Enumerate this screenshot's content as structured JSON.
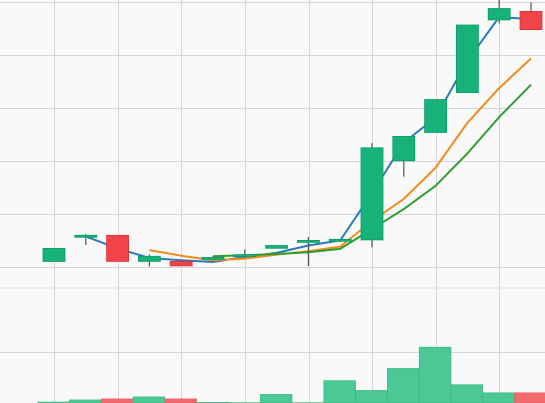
{
  "chart_data": {
    "type": "candlestick",
    "title": "",
    "grid": true,
    "background": "#f9f9f9",
    "colors": {
      "up": "#17b27a",
      "down": "#f0444a",
      "volume_up": "#4cc894",
      "volume_down": "#f06a6e",
      "ma_short": "#2c7bb6",
      "ma_mid": "#f28a1c",
      "ma_long": "#2e9e2e",
      "grid": "#d6d6d6",
      "wick": "#555555"
    },
    "price_ylim": [
      -4.5,
      46
    ],
    "volume_ylim": [
      0,
      56
    ],
    "candles": [
      {
        "open": 0.0,
        "close": 2.3,
        "high": 2.3,
        "low": 0.0
      },
      {
        "open": 4.3,
        "close": 4.6,
        "high": 4.8,
        "low": 2.9
      },
      {
        "open": 4.6,
        "close": 0.0,
        "high": 4.6,
        "low": 0.0
      },
      {
        "open": 0.0,
        "close": 0.9,
        "high": 1.2,
        "low": -0.9
      },
      {
        "open": 0.0,
        "close": -0.8,
        "high": 0.0,
        "low": -0.8
      },
      {
        "open": 0.4,
        "close": 0.7,
        "high": 0.9,
        "low": 0.3
      },
      {
        "open": 0.9,
        "close": 1.2,
        "high": 2.1,
        "low": 0.6
      },
      {
        "open": 2.3,
        "close": 2.8,
        "high": 2.8,
        "low": 2.3
      },
      {
        "open": 3.4,
        "close": 3.7,
        "high": 4.3,
        "low": -0.8
      },
      {
        "open": 3.7,
        "close": 3.9,
        "high": 3.9,
        "low": 3.4
      },
      {
        "open": 3.8,
        "close": 20.0,
        "high": 20.8,
        "low": 2.5
      },
      {
        "open": 17.7,
        "close": 22.0,
        "high": 22.0,
        "low": 14.9
      },
      {
        "open": 22.7,
        "close": 28.5,
        "high": 28.5,
        "low": 22.7
      },
      {
        "open": 29.7,
        "close": 41.6,
        "high": 41.6,
        "low": 29.7
      },
      {
        "open": 42.5,
        "close": 44.5,
        "high": 46.6,
        "low": 41.9
      },
      {
        "open": 44.0,
        "close": 40.8,
        "high": 45.6,
        "low": 40.8
      }
    ],
    "volume": [
      0.5,
      1.5,
      2.0,
      3.0,
      2.0,
      0.3,
      0.2,
      4.2,
      0.2,
      11.0,
      6.2,
      17.0,
      27.4,
      9.0,
      5.0,
      5.0
    ],
    "series": [
      {
        "values": [
          null,
          4.4,
          2.3,
          0.6,
          0.2,
          -0.1,
          0.8,
          1.5,
          2.8,
          3.7,
          12.0,
          20.9,
          25.3,
          35.3,
          43.0,
          42.6
        ]
      },
      {
        "values": [
          null,
          null,
          null,
          2.0,
          1.0,
          0.2,
          0.5,
          1.2,
          1.8,
          2.6,
          7.1,
          11.0,
          16.5,
          24.4,
          30.5,
          35.7
        ]
      },
      {
        "values": [
          null,
          null,
          null,
          null,
          null,
          0.9,
          1.1,
          1.3,
          1.6,
          2.2,
          5.7,
          9.2,
          13.3,
          19.0,
          25.4,
          31.1
        ]
      }
    ]
  }
}
